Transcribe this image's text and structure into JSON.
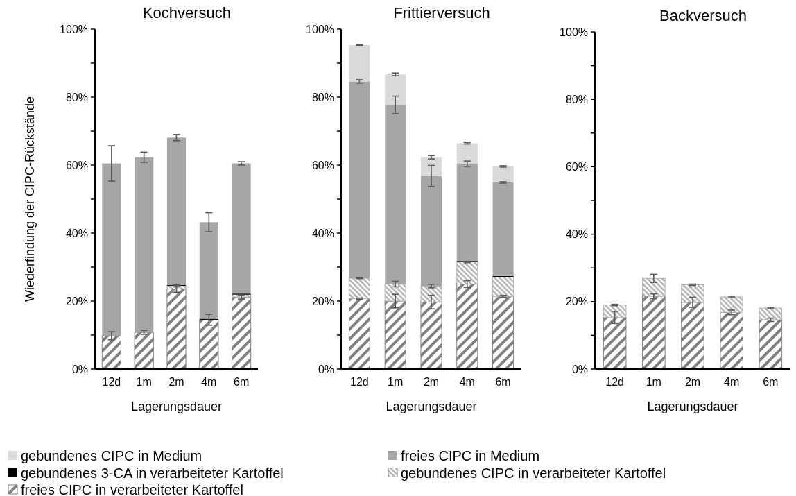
{
  "chart_data": [
    {
      "type": "bar",
      "title": "Kochversuch",
      "xlabel": "Lagerungsdauer",
      "ylabel": "Wiederfindung der CIPC-Rückstände",
      "stacked": true,
      "legend": "bottom",
      "categories": [
        "12d",
        "1m",
        "2m",
        "4m",
        "6m"
      ],
      "ylim": [
        0,
        100
      ],
      "yticks": [
        {
          "value": 0,
          "label": "0%"
        },
        {
          "value": 10,
          "label": null
        },
        {
          "value": 20,
          "label": "20%"
        },
        {
          "value": 30,
          "label": null
        },
        {
          "value": 40,
          "label": "40%"
        },
        {
          "value": 50,
          "label": null
        },
        {
          "value": 60,
          "label": "60%"
        },
        {
          "value": 70,
          "label": null
        },
        {
          "value": 80,
          "label": "80%"
        },
        {
          "value": 90,
          "label": null
        },
        {
          "value": 100,
          "label": "100%"
        }
      ],
      "series": [
        {
          "name": "freies CIPC in verarbeiteter Kartoffel",
          "color": "#808080",
          "values": [
            9.8,
            10.8,
            23.6,
            14.5,
            21.2
          ],
          "errors": [
            1.2,
            0.6,
            1.0,
            1.6,
            0.6
          ]
        },
        {
          "name": "gebundenes CIPC in verarbeiteter Kartoffel",
          "color": "#b3b3b3",
          "values": [
            0,
            0,
            0.9,
            0,
            0.7
          ],
          "errors": [
            null,
            null,
            0.3,
            null,
            null
          ]
        },
        {
          "name": "gebundenes 3-CA in verarbeiteter Kartoffel",
          "color": "#000000",
          "values": [
            0,
            0,
            0.2,
            0.3,
            0.3
          ],
          "errors": [
            null,
            null,
            null,
            null,
            null
          ]
        },
        {
          "name": "freies CIPC in Medium",
          "color": "#a6a6a6",
          "values": [
            50.7,
            51.5,
            43.4,
            28.4,
            38.3
          ],
          "errors": [
            5.2,
            1.5,
            0.9,
            2.8,
            0.5
          ]
        },
        {
          "name": "gebundenes CIPC in Medium",
          "color": "#d9d9d9",
          "values": [
            0,
            0,
            0,
            0,
            0
          ],
          "errors": [
            null,
            null,
            null,
            null,
            null
          ]
        }
      ]
    },
    {
      "type": "bar",
      "title": "Frittierversuch",
      "xlabel": "Lagerungsdauer",
      "stacked": true,
      "categories": [
        "12d",
        "1m",
        "2m",
        "4m",
        "6m"
      ],
      "ylim": [
        0,
        100
      ],
      "yticks": [
        {
          "value": 0,
          "label": "0%"
        },
        {
          "value": 10,
          "label": null
        },
        {
          "value": 20,
          "label": "20%"
        },
        {
          "value": 30,
          "label": null
        },
        {
          "value": 40,
          "label": "40%"
        },
        {
          "value": 50,
          "label": null
        },
        {
          "value": 60,
          "label": "60%"
        },
        {
          "value": 70,
          "label": null
        },
        {
          "value": 80,
          "label": "80%"
        },
        {
          "value": 90,
          "label": null
        },
        {
          "value": 100,
          "label": "100%"
        }
      ],
      "series": [
        {
          "color": "#808080",
          "values": [
            20.7,
            20.0,
            19.7,
            25.0,
            21.4
          ],
          "errors": [
            0.2,
            2.0,
            2.0,
            1.0,
            0.3
          ]
        },
        {
          "color": "#b3b3b3",
          "values": [
            6.0,
            5.0,
            4.7,
            6.5,
            5.7
          ],
          "errors": [
            0.1,
            0.8,
            0.5,
            0.2,
            null
          ]
        },
        {
          "color": "#000000",
          "values": [
            0,
            0,
            0,
            0.3,
            0.3
          ],
          "errors": [
            null,
            null,
            null,
            null,
            null
          ]
        },
        {
          "color": "#a6a6a6",
          "values": [
            57.9,
            52.7,
            32.4,
            28.6,
            27.5
          ],
          "errors": [
            0.5,
            2.6,
            3.1,
            0.8,
            0.2
          ]
        },
        {
          "color": "#d9d9d9",
          "values": [
            10.7,
            9.0,
            5.5,
            6.0,
            4.7
          ],
          "errors": [
            0.1,
            0.4,
            0.5,
            0.2,
            0.2
          ]
        }
      ]
    },
    {
      "type": "bar",
      "title": "Backversuch",
      "xlabel": "Lagerungsdauer",
      "stacked": true,
      "categories": [
        "12d",
        "1m",
        "2m",
        "4m",
        "6m"
      ],
      "ylim": [
        0,
        100
      ],
      "yticks": [
        {
          "value": 0,
          "label": "0%"
        },
        {
          "value": 10,
          "label": null
        },
        {
          "value": 20,
          "label": "20%"
        },
        {
          "value": 30,
          "label": null
        },
        {
          "value": 40,
          "label": "40%"
        },
        {
          "value": 50,
          "label": null
        },
        {
          "value": 60,
          "label": "60%"
        },
        {
          "value": 70,
          "label": null
        },
        {
          "value": 80,
          "label": "80%"
        },
        {
          "value": 90,
          "label": null
        },
        {
          "value": 100,
          "label": "100%"
        }
      ],
      "series": [
        {
          "color": "#808080",
          "values": [
            15.3,
            21.6,
            19.8,
            16.8,
            14.6
          ],
          "errors": [
            1.8,
            0.7,
            1.5,
            0.7,
            0.5
          ]
        },
        {
          "color": "#b3b3b3",
          "values": [
            3.7,
            5.3,
            5.2,
            4.6,
            3.5
          ],
          "errors": [
            0.2,
            1.2,
            0.2,
            0.2,
            0.2
          ]
        }
      ]
    }
  ]
}
